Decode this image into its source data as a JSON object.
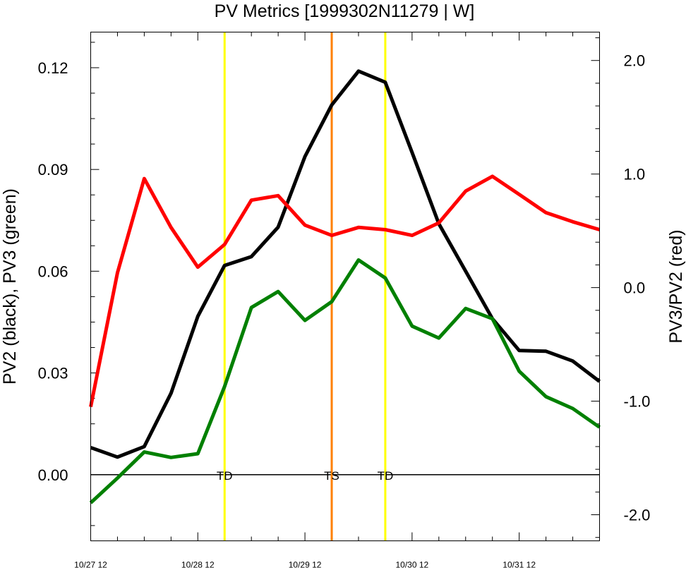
{
  "chart_data": {
    "type": "line",
    "title": "PV Metrics [1999302N11279 | W]",
    "ylabel_left": "PV2 (black), PV3 (green)",
    "ylabel_right": "PV3/PV2 (red)",
    "x_tick_labels": [
      "10/27 12",
      "10/28 12",
      "10/29 12",
      "10/30 12",
      "10/31 12"
    ],
    "x_tick_values": [
      0,
      24,
      48,
      72,
      96
    ],
    "x_unit": "hours from 10/27 12",
    "xlim": [
      0,
      114
    ],
    "ylim_left": [
      -0.0195,
      0.1305
    ],
    "ylim_right": [
      -2.23,
      2.25
    ],
    "y_ticks_left": [
      0.0,
      0.03,
      0.06,
      0.09,
      0.12
    ],
    "y_tick_labels_left": [
      "0.00",
      "0.03",
      "0.06",
      "0.09",
      "0.12"
    ],
    "y_ticks_right": [
      -2.0,
      -1.0,
      0.0,
      1.0,
      2.0
    ],
    "y_tick_labels_right": [
      "-2.0",
      "-1.0",
      "0.0",
      "1.0",
      "2.0"
    ],
    "x": [
      0,
      6,
      12,
      18,
      24,
      30,
      36,
      42,
      48,
      54,
      60,
      66,
      72,
      78,
      84,
      90,
      96,
      102,
      108,
      114
    ],
    "series": [
      {
        "name": "PV2",
        "axis": "left",
        "color": "#000000",
        "values": [
          0.008,
          0.0052,
          0.0083,
          0.024,
          0.0467,
          0.0617,
          0.0643,
          0.073,
          0.0938,
          0.109,
          0.119,
          0.1157,
          0.095,
          0.074,
          0.06,
          0.046,
          0.0366,
          0.0364,
          0.0335,
          0.0275
        ]
      },
      {
        "name": "PV3",
        "axis": "left",
        "color": "#008000",
        "values": [
          -0.0083,
          -0.001,
          0.0067,
          0.0051,
          0.0062,
          0.026,
          0.0493,
          0.054,
          0.0455,
          0.051,
          0.0633,
          0.058,
          0.0438,
          0.0403,
          0.049,
          0.046,
          0.0305,
          0.023,
          0.0195,
          0.014
        ]
      },
      {
        "name": "PV3/PV2",
        "axis": "right",
        "color": "#ff0000",
        "values": [
          -1.05,
          0.13,
          0.96,
          0.53,
          0.18,
          0.38,
          0.77,
          0.81,
          0.55,
          0.46,
          0.53,
          0.51,
          0.46,
          0.57,
          0.85,
          0.98,
          0.82,
          0.66,
          0.58,
          0.51
        ]
      }
    ],
    "vertical_markers": [
      {
        "x": 30,
        "label": "TD",
        "color": "#ffff00"
      },
      {
        "x": 54,
        "label": "TS",
        "color": "#ff8000"
      },
      {
        "x": 66,
        "label": "TD",
        "color": "#ffff00"
      }
    ],
    "zero_line_value": 0,
    "grid": false,
    "legend": "none"
  }
}
